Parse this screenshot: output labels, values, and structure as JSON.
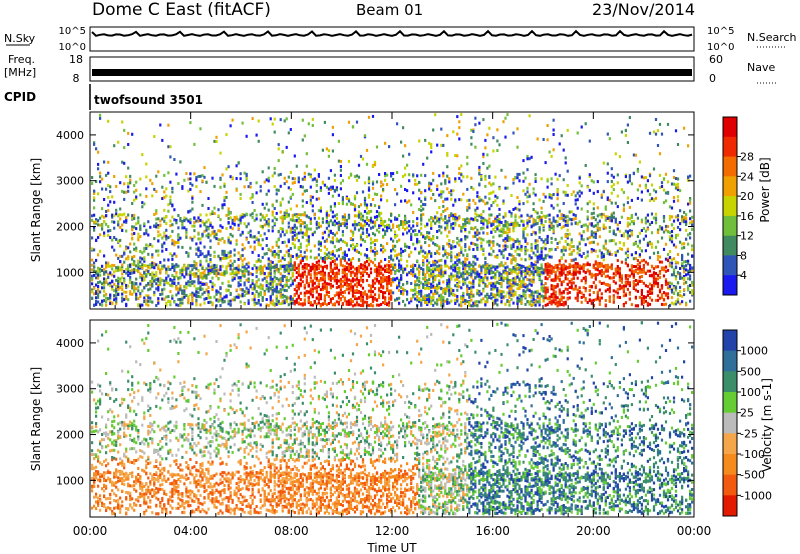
{
  "header": {
    "title": "Dome C East (fitACF)",
    "beam": "Beam 01",
    "date": "23/Nov/2014"
  },
  "noise_panel": {
    "left_label": "N.Sky",
    "right_label": "N.Search",
    "left_ticks": [
      "10^5",
      "10^0"
    ],
    "right_ticks": [
      "10^5",
      "10^0"
    ]
  },
  "freq_panel": {
    "left_label": "Freq.",
    "left_unit": "[MHz]",
    "right_label": "Nave",
    "left_ticks": [
      "18",
      "8"
    ],
    "right_ticks": [
      "60",
      "0"
    ]
  },
  "cpid": {
    "label": "CPID",
    "value": "twofsound 3501"
  },
  "chart_data": [
    {
      "type": "heatmap",
      "parameter": "Power",
      "ylabel": "Slant Range [km]",
      "ylim": [
        200,
        4500
      ],
      "yticks": [
        "1000",
        "2000",
        "3000",
        "4000"
      ],
      "colorbar_label": "Power [dB]",
      "colorbar_ticks": [
        "4",
        "8",
        "12",
        "16",
        "20",
        "24",
        "28"
      ],
      "colors": [
        "#1a1aee",
        "#2f55b8",
        "#3f8a5e",
        "#6fbf3a",
        "#c8d400",
        "#f0a000",
        "#f26c00",
        "#ef2a00",
        "#e00000"
      ]
    },
    {
      "type": "heatmap",
      "parameter": "Velocity",
      "ylabel": "Slant Range [km]",
      "ylim": [
        200,
        4500
      ],
      "yticks": [
        "1000",
        "2000",
        "3000",
        "4000"
      ],
      "colorbar_label": "Velocity [m s-1]",
      "colorbar_ticks": [
        "1000",
        "500",
        "100",
        "25",
        "-25",
        "-100",
        "-500",
        "-1000"
      ],
      "colors": [
        "#2244aa",
        "#2f6f9a",
        "#3a8f6a",
        "#66cc33",
        "#bbbbbb",
        "#f6a64a",
        "#f58a1f",
        "#f25a10",
        "#e11a00"
      ]
    }
  ],
  "xaxis": {
    "label": "Time UT",
    "ticks": [
      "00:00",
      "04:00",
      "08:00",
      "12:00",
      "16:00",
      "20:00",
      "00:00"
    ]
  }
}
